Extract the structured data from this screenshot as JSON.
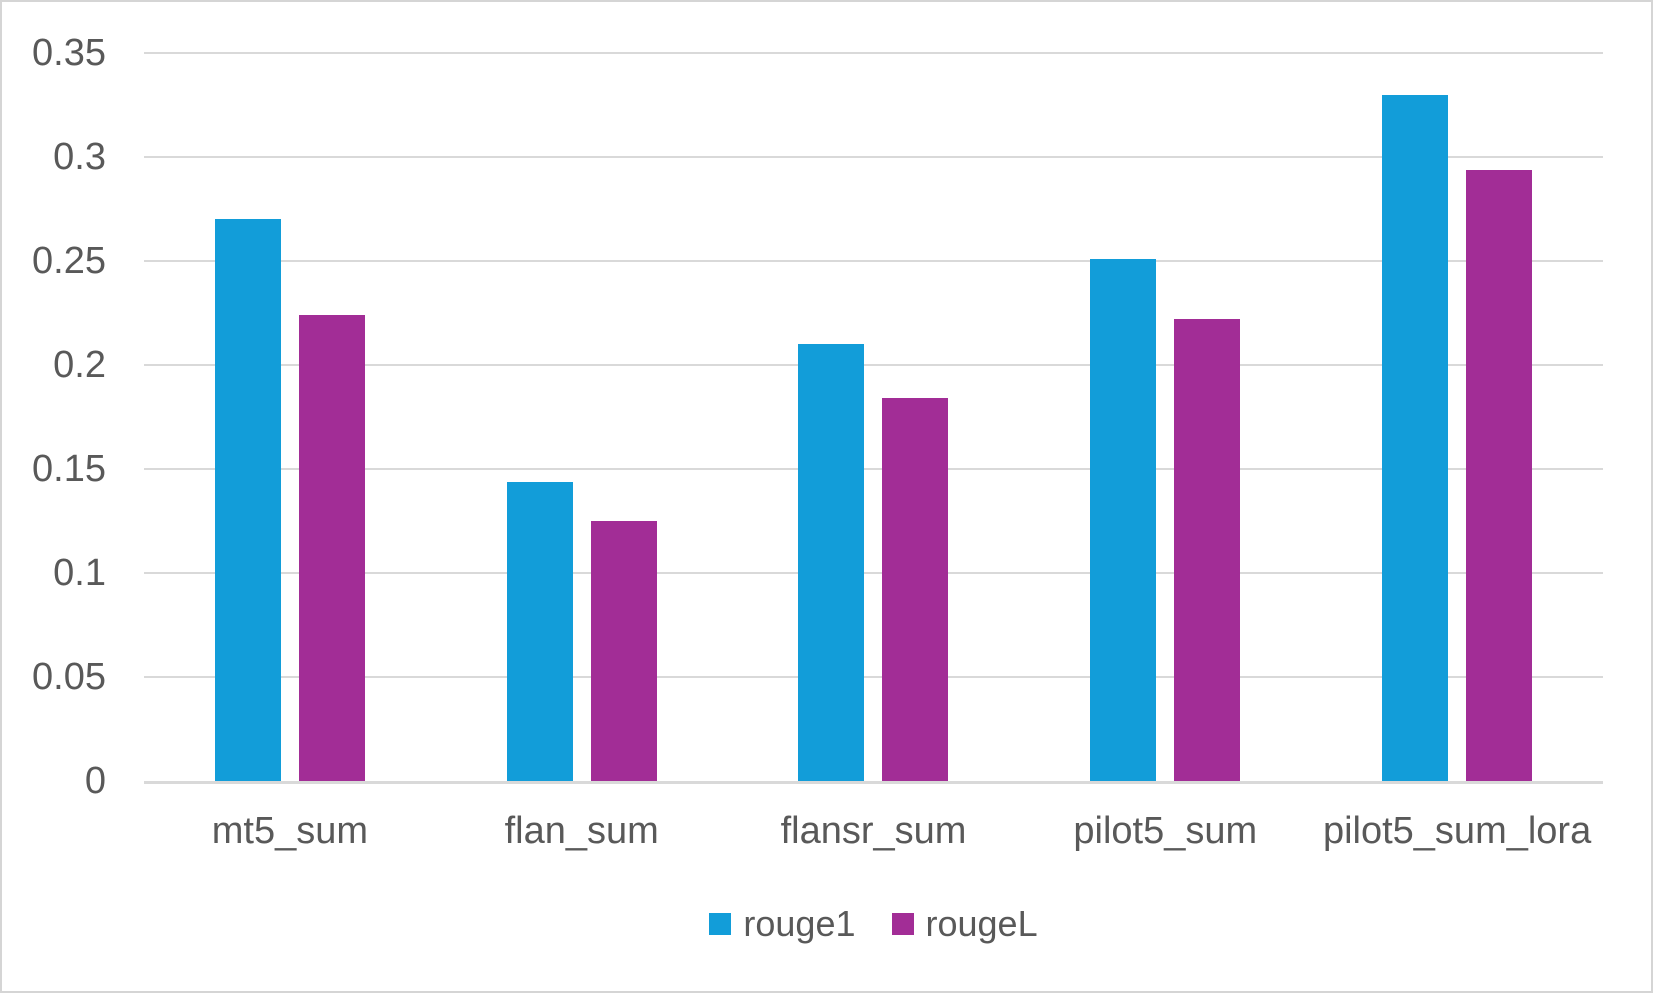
{
  "chart_data": {
    "type": "bar",
    "title": "",
    "xlabel": "",
    "ylabel": "",
    "categories": [
      "mt5_sum",
      "flan_sum",
      "flansr_sum",
      "pilot5_sum",
      "pilot5_sum_lora"
    ],
    "series": [
      {
        "name": "rouge1",
        "color": "#129DD9",
        "values": [
          0.27,
          0.144,
          0.21,
          0.251,
          0.33
        ]
      },
      {
        "name": "rougeL",
        "color": "#A22D96",
        "values": [
          0.224,
          0.125,
          0.184,
          0.222,
          0.294
        ]
      }
    ],
    "ylim": [
      0,
      0.35
    ],
    "ytick_step": 0.05,
    "yticks": [
      {
        "value": 0,
        "label": "0"
      },
      {
        "value": 0.05,
        "label": "0.05"
      },
      {
        "value": 0.1,
        "label": "0.1"
      },
      {
        "value": 0.15,
        "label": "0.15"
      },
      {
        "value": 0.2,
        "label": "0.2"
      },
      {
        "value": 0.25,
        "label": "0.25"
      },
      {
        "value": 0.3,
        "label": "0.3"
      },
      {
        "value": 0.35,
        "label": "0.35"
      }
    ],
    "grid": true,
    "legend_position": "bottom",
    "theme": {
      "grid_color": "#D9D9D9",
      "axis_line_color": "#D9D9D9",
      "text_color": "#595959",
      "background": "#FFFFFF",
      "frame_border_color": "#D5D5D5"
    }
  }
}
